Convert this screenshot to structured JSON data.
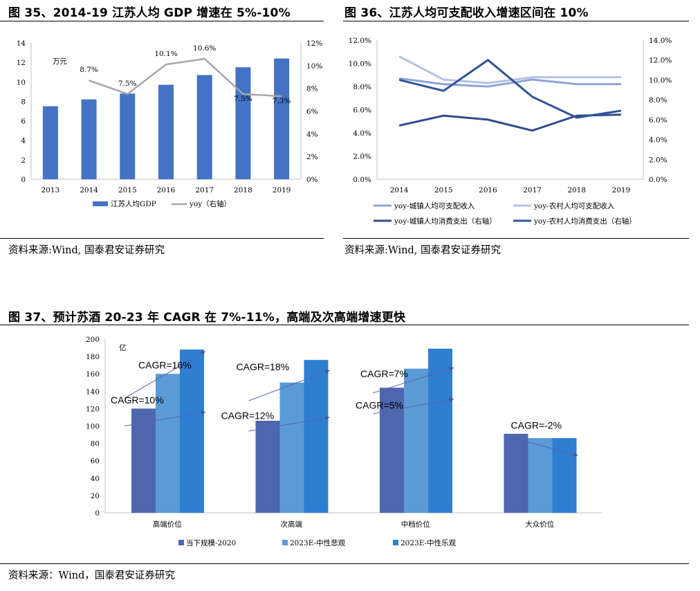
{
  "fig35": {
    "title": "图 35、2014-19 江苏人均 GDP 增速在 5%-10%",
    "source": "资料来源:Wind, 国泰君安证券研究",
    "chart_data": {
      "type": "bar",
      "categories": [
        "2013",
        "2014",
        "2015",
        "2016",
        "2017",
        "2018",
        "2019"
      ],
      "unit_label": "万元",
      "ylim_left": [
        0,
        14
      ],
      "ylim_right": [
        0,
        12
      ],
      "left_ticks": [
        "0",
        "2",
        "4",
        "6",
        "8",
        "10",
        "12",
        "14"
      ],
      "right_ticks": [
        "0%",
        "2%",
        "4%",
        "6%",
        "8%",
        "10%",
        "12%"
      ],
      "series": [
        {
          "name": "江苏人均GDP",
          "kind": "bar",
          "axis": "left",
          "color": "#4472C4",
          "values": [
            7.5,
            8.2,
            8.8,
            9.7,
            10.7,
            11.5,
            12.4
          ]
        },
        {
          "name": "yoy（右轴）",
          "kind": "line",
          "axis": "right",
          "color": "#A6A6A6",
          "values": [
            null,
            8.7,
            7.5,
            10.1,
            10.6,
            7.5,
            7.3
          ],
          "labels": [
            "",
            "8.7%",
            "7.5%",
            "10.1%",
            "10.6%",
            "7.5%",
            "7.3%"
          ]
        }
      ]
    }
  },
  "fig36": {
    "title": "图 36、江苏人均可支配收入增速区间在 10%",
    "source": "资料来源:Wind, 国泰君安证券研究",
    "chart_data": {
      "type": "line",
      "categories": [
        "2014",
        "2015",
        "2016",
        "2017",
        "2018",
        "2019"
      ],
      "ylim_left": [
        0,
        12
      ],
      "ylim_right": [
        0,
        14
      ],
      "left_ticks": [
        "0.0%",
        "2.0%",
        "4.0%",
        "6.0%",
        "8.0%",
        "10.0%",
        "12.0%"
      ],
      "right_ticks": [
        "0.0%",
        "2.0%",
        "4.0%",
        "6.0%",
        "8.0%",
        "10.0%",
        "12.0%",
        "14.0%"
      ],
      "series": [
        {
          "name": "yoy-城镇人均可支配收入",
          "axis": "left",
          "color": "#8EA3D8",
          "values": [
            8.7,
            8.2,
            8.0,
            8.6,
            8.2,
            8.2
          ]
        },
        {
          "name": "yoy-农村人均可支配收入",
          "axis": "left",
          "color": "#B4C1E6",
          "values": [
            10.6,
            8.6,
            8.3,
            8.8,
            8.8,
            8.8
          ]
        },
        {
          "name": "yoy-城镇人均消费支出（右轴）",
          "axis": "right",
          "color": "#2E4D8F",
          "values": [
            5.4,
            6.4,
            6.0,
            4.9,
            6.4,
            6.5
          ]
        },
        {
          "name": "yoy-农村人均消费支出（右轴）",
          "axis": "right",
          "color": "#2F5597",
          "values": [
            10.0,
            8.9,
            12.0,
            8.3,
            6.2,
            6.9
          ]
        }
      ]
    }
  },
  "fig37": {
    "title": "图 37、预计苏酒 20-23 年 CAGR 在 7%-11%，高端及次高端增速更快",
    "source": "资料来源：Wind，国泰君安证券研究",
    "chart_data": {
      "type": "bar",
      "categories": [
        "高端价位",
        "次高端",
        "中档价位",
        "大众价位"
      ],
      "unit_label": "亿",
      "ylim": [
        0,
        200
      ],
      "ticks": [
        "0",
        "20",
        "40",
        "60",
        "80",
        "100",
        "120",
        "140",
        "160",
        "180",
        "200"
      ],
      "series": [
        {
          "name": "当下规模-2020",
          "color": "#4E66AE",
          "values": [
            120,
            106,
            144,
            91
          ]
        },
        {
          "name": "2023E-中性悲观",
          "color": "#5B9BD5",
          "values": [
            160,
            150,
            166,
            86
          ]
        },
        {
          "name": "2023E-中性乐观",
          "color": "#2E7FD2",
          "values": [
            188,
            176,
            189,
            86
          ]
        }
      ],
      "annotations": [
        {
          "text": "CAGR=16%"
        },
        {
          "text": "CAGR=10%"
        },
        {
          "text": "CAGR=18%"
        },
        {
          "text": "CAGR=12%"
        },
        {
          "text": "CAGR=7%"
        },
        {
          "text": "CAGR=5%"
        },
        {
          "text": "CAGR=-2%"
        }
      ]
    }
  }
}
